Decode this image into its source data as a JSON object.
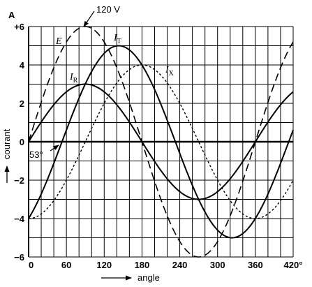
{
  "chart_data": {
    "type": "line",
    "title": "",
    "xlabel": "angle",
    "ylabel": "courant",
    "y_unit": "A",
    "x_unit": "°",
    "xlim": [
      0,
      420
    ],
    "ylim": [
      -6,
      6
    ],
    "x_ticks": [
      0,
      60,
      120,
      180,
      240,
      300,
      360,
      420
    ],
    "x_tick_labels": [
      "0",
      "60",
      "120",
      "180",
      "240",
      "300",
      "360",
      "420°"
    ],
    "y_ticks": [
      -6,
      -4,
      -2,
      0,
      2,
      4,
      6
    ],
    "y_tick_labels": [
      "−6",
      "−4",
      "−2",
      "0",
      "2",
      "4",
      "+6"
    ],
    "grid": true,
    "series": [
      {
        "name": "E",
        "style": "long-dash",
        "amplitude": 6,
        "phase_deg": 0,
        "x": [
          0,
          30,
          60,
          90,
          120,
          150,
          180,
          210,
          240,
          270,
          300,
          330,
          360,
          390,
          420
        ],
        "y": [
          0,
          3,
          5.2,
          6,
          5.2,
          3,
          0,
          -3,
          -5.2,
          -6,
          -5.2,
          -3,
          0,
          3,
          5.2
        ]
      },
      {
        "name": "IT",
        "style": "solid",
        "amplitude": 5,
        "phase_deg": -53,
        "x": [
          0,
          53,
          143,
          233,
          323,
          413,
          420
        ],
        "y": [
          -4,
          0,
          5,
          0,
          -5,
          0,
          0.6
        ]
      },
      {
        "name": "IR",
        "style": "solid",
        "amplitude": 3,
        "phase_deg": 0,
        "x": [
          0,
          90,
          180,
          270,
          360,
          420
        ],
        "y": [
          0,
          3,
          0,
          -3,
          0,
          2.6
        ]
      },
      {
        "name": "IX",
        "style": "short-dash",
        "amplitude": 4,
        "phase_deg": -90,
        "x": [
          0,
          90,
          180,
          270,
          360,
          420
        ],
        "y": [
          -4,
          0,
          4,
          0,
          -4,
          -2
        ]
      }
    ],
    "series_labels": [
      {
        "main": "E",
        "sub": ""
      },
      {
        "main": "I",
        "sub": "T"
      },
      {
        "main": "I",
        "sub": "R"
      },
      {
        "main": "I",
        "sub": "X"
      }
    ],
    "annotations": [
      "120 V",
      "53°"
    ]
  }
}
